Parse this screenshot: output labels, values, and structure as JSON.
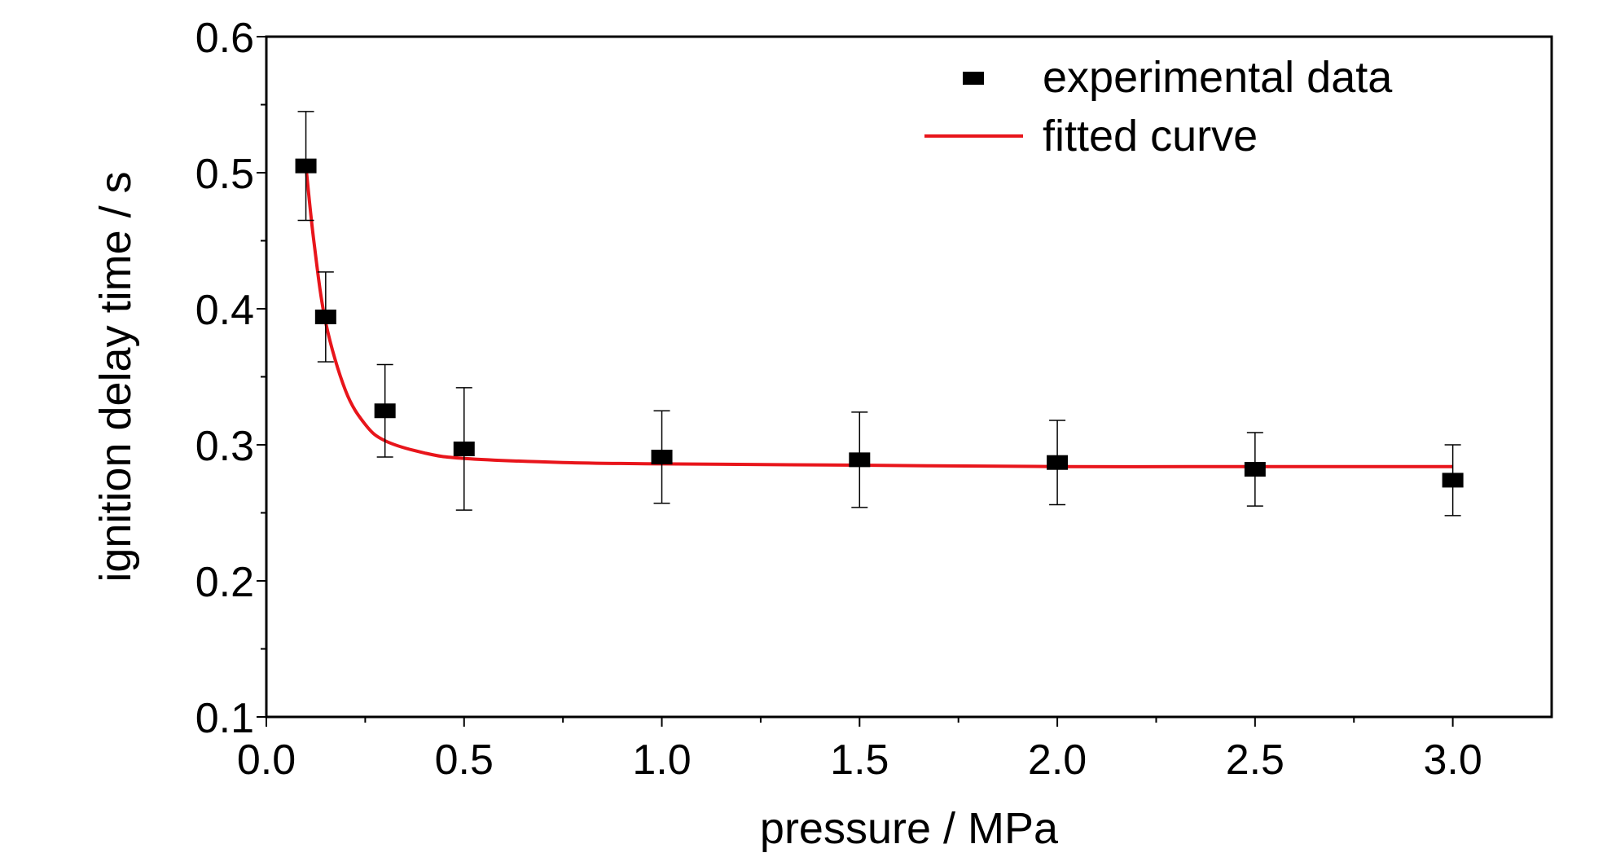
{
  "chart_data": {
    "type": "scatter",
    "xlabel": "pressure / MPa",
    "ylabel": "ignition delay time / s",
    "xlim": [
      0.0,
      3.25
    ],
    "ylim": [
      0.1,
      0.6
    ],
    "xticks": [
      "0.0",
      "0.5",
      "1.0",
      "1.5",
      "2.0",
      "2.5",
      "3.0"
    ],
    "yticks": [
      "0.1",
      "0.2",
      "0.3",
      "0.4",
      "0.5",
      "0.6"
    ],
    "grid": false,
    "legend_position": "top-right",
    "series": [
      {
        "name": "experimental data",
        "kind": "points",
        "color": "#000000",
        "x": [
          0.1,
          0.15,
          0.3,
          0.5,
          1.0,
          1.5,
          2.0,
          2.5,
          3.0
        ],
        "y": [
          0.505,
          0.394,
          0.325,
          0.297,
          0.291,
          0.289,
          0.287,
          0.282,
          0.274
        ],
        "error": [
          0.04,
          0.033,
          0.034,
          0.045,
          0.034,
          0.035,
          0.031,
          0.027,
          0.026
        ]
      },
      {
        "name": "fitted curve",
        "kind": "line",
        "color": "#e8151b",
        "x": [
          0.1,
          0.12,
          0.15,
          0.2,
          0.25,
          0.3,
          0.4,
          0.5,
          0.75,
          1.0,
          1.5,
          2.0,
          2.5,
          3.0
        ],
        "y": [
          0.505,
          0.45,
          0.39,
          0.34,
          0.315,
          0.303,
          0.294,
          0.29,
          0.287,
          0.286,
          0.285,
          0.284,
          0.284,
          0.284
        ]
      }
    ]
  }
}
